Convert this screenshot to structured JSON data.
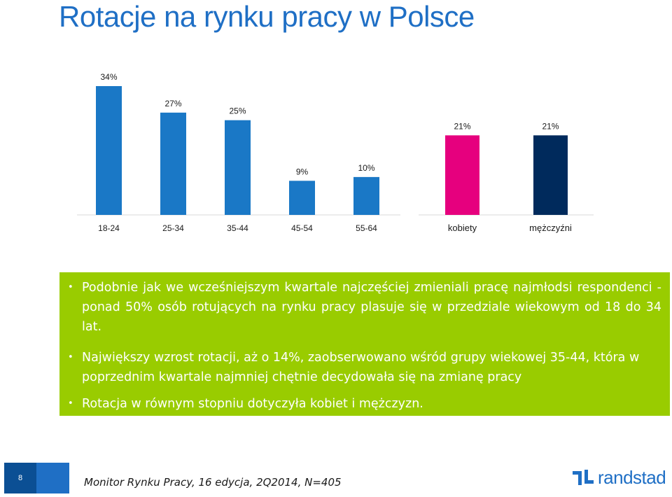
{
  "slide": {
    "title": "Rotacje na rynku pracy w Polsce",
    "page_number": "8",
    "footer": "Monitor Rynku Pracy, 16 edycja,  2Q2014, N=405",
    "logo": "randstad"
  },
  "bullets": [
    "Podobnie jak we wcześniejszym kwartale najczęściej zmieniali pracę najmłodsi respondenci - ponad 50% osób rotujących na rynku pracy plasuje się w przedziale wiekowym od 18 do 34 lat.",
    "Największy wzrost rotacji, aż o 14%, zaobserwowano wśród grupy wiekowej 35-44, która w poprzednim kwartale najmniej chętnie decydowała się na zmianę pracy",
    "Rotacja w równym stopniu dotyczyła kobiet i mężczyzn."
  ],
  "colors": {
    "title": "#1f6fc5",
    "age_bar": "#1a78c6",
    "women_bar": "#e6007e",
    "men_bar": "#002a5c",
    "box": "#99cc00"
  },
  "chart_data": [
    {
      "type": "bar",
      "categories": [
        "18-24",
        "25-34",
        "35-44",
        "45-54",
        "55-64"
      ],
      "values": [
        34,
        27,
        25,
        9,
        10
      ],
      "data_labels": [
        "34%",
        "27%",
        "25%",
        "9%",
        "10%"
      ],
      "ylim": [
        0,
        34
      ],
      "color": "#1a78c6"
    },
    {
      "type": "bar",
      "categories": [
        "kobiety",
        "mężczyźni"
      ],
      "values": [
        21,
        21
      ],
      "data_labels": [
        "21%",
        "21%"
      ],
      "ylim": [
        0,
        34
      ],
      "colors": [
        "#e6007e",
        "#002a5c"
      ]
    }
  ]
}
